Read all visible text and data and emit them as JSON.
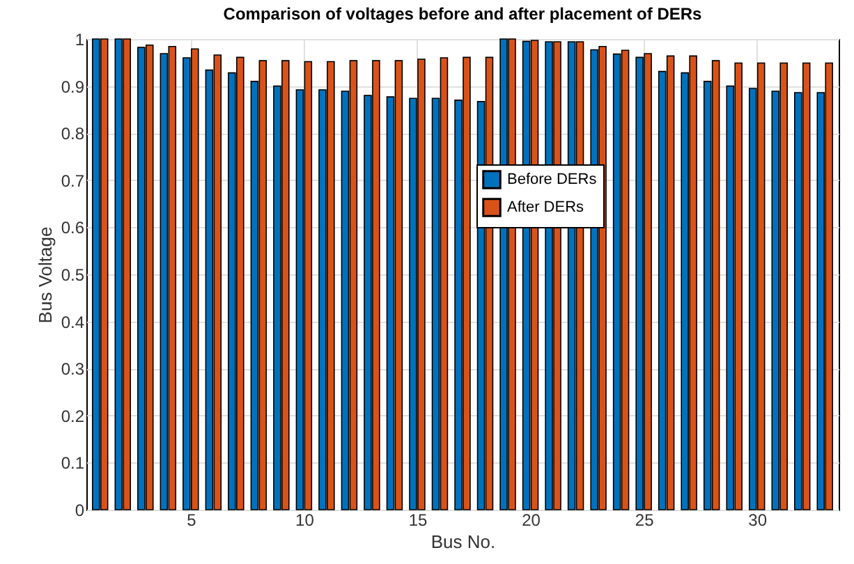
{
  "chart_data": {
    "type": "bar",
    "title": "Comparison of voltages before and after placement of DERs",
    "xlabel": "Bus No.",
    "ylabel": "Bus Voltage",
    "x": [
      1,
      2,
      3,
      4,
      5,
      6,
      7,
      8,
      9,
      10,
      11,
      12,
      13,
      14,
      15,
      16,
      17,
      18,
      19,
      20,
      21,
      22,
      23,
      24,
      25,
      26,
      27,
      28,
      29,
      30,
      31,
      32,
      33
    ],
    "series": [
      {
        "name": "Before DERs",
        "color": "#0072bd",
        "values": [
          1,
          1,
          0.982,
          0.969,
          0.96,
          0.934,
          0.928,
          0.91,
          0.9,
          0.892,
          0.892,
          0.889,
          0.88,
          0.877,
          0.874,
          0.874,
          0.87,
          0.867,
          1,
          0.995,
          0.994,
          0.994,
          0.977,
          0.968,
          0.961,
          0.931,
          0.928,
          0.91,
          0.9,
          0.895,
          0.889,
          0.886,
          0.886
        ]
      },
      {
        "name": "After DERs",
        "color": "#d95319",
        "values": [
          1,
          1,
          0.987,
          0.984,
          0.979,
          0.966,
          0.961,
          0.954,
          0.954,
          0.952,
          0.952,
          0.954,
          0.954,
          0.954,
          0.957,
          0.96,
          0.961,
          0.961,
          1,
          0.997,
          0.994,
          0.994,
          0.984,
          0.976,
          0.969,
          0.964,
          0.964,
          0.954,
          0.949,
          0.949,
          0.949,
          0.949,
          0.949
        ]
      }
    ],
    "xlim": [
      0.7,
      33.3
    ],
    "xticks": [
      5,
      10,
      15,
      20,
      25,
      30
    ],
    "ylim": [
      0,
      1
    ],
    "yticks": [
      0,
      0.1,
      0.2,
      0.3,
      0.4,
      0.5,
      0.6,
      0.7,
      0.8,
      0.9,
      1
    ],
    "grid": true,
    "legend": "right"
  }
}
